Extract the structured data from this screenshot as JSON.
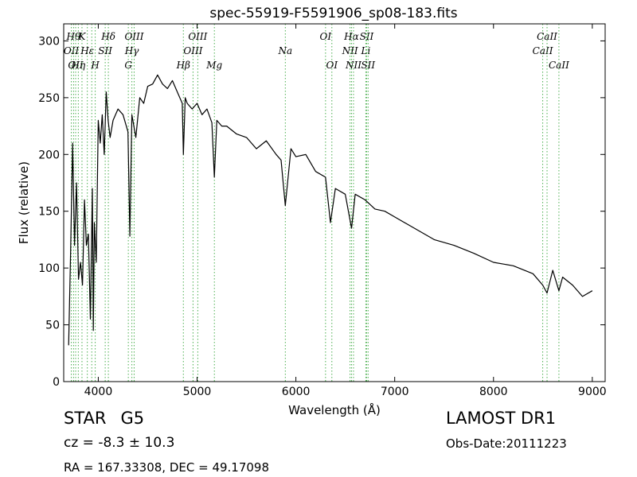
{
  "chart_data": {
    "type": "line",
    "title": "spec-55919-F5591906_sp08-183.fits",
    "xlabel": "Wavelength (Å)",
    "ylabel": "Flux (relative)",
    "xlim": [
      3650,
      9130
    ],
    "ylim": [
      0,
      315
    ],
    "xticks": [
      4000,
      5000,
      6000,
      7000,
      8000,
      9000
    ],
    "yticks": [
      0,
      50,
      100,
      150,
      200,
      250,
      300
    ],
    "grid": false,
    "line_color": "#000000",
    "marker_color": "#4caf50",
    "series": [
      {
        "x": [
          3700,
          3720,
          3740,
          3760,
          3780,
          3800,
          3820,
          3840,
          3860,
          3880,
          3900,
          3920,
          3940,
          3950,
          3960,
          3980,
          4000,
          4020,
          4040,
          4060,
          4080,
          4100,
          4120,
          4150,
          4200,
          4250,
          4300,
          4320,
          4340,
          4380,
          4420,
          4460,
          4500,
          4550,
          4600,
          4650,
          4700,
          4750,
          4800,
          4850,
          4861,
          4880,
          4900,
          4950,
          5000,
          5050,
          5100,
          5150,
          5175,
          5200,
          5250,
          5300,
          5400,
          5500,
          5600,
          5700,
          5800,
          5850,
          5893,
          5950,
          6000,
          6100,
          6200,
          6300,
          6350,
          6400,
          6500,
          6563,
          6600,
          6700,
          6800,
          6900,
          7000,
          7200,
          7400,
          7600,
          7800,
          8000,
          8200,
          8400,
          8498,
          8542,
          8600,
          8662,
          8700,
          8800,
          8900,
          9000
        ],
        "values": [
          32,
          115,
          210,
          120,
          175,
          90,
          105,
          85,
          160,
          120,
          130,
          55,
          170,
          45,
          140,
          105,
          230,
          210,
          235,
          200,
          255,
          230,
          215,
          230,
          240,
          235,
          220,
          128,
          235,
          215,
          250,
          245,
          260,
          262,
          270,
          262,
          258,
          265,
          255,
          245,
          200,
          250,
          245,
          240,
          245,
          235,
          240,
          228,
          180,
          230,
          225,
          225,
          218,
          215,
          205,
          212,
          200,
          195,
          155,
          205,
          198,
          200,
          185,
          180,
          140,
          170,
          165,
          135,
          165,
          160,
          152,
          150,
          145,
          135,
          125,
          120,
          113,
          105,
          102,
          95,
          85,
          78,
          98,
          80,
          92,
          85,
          75,
          80
        ]
      }
    ],
    "lines": [
      {
        "w": 3727,
        "labels": [
          {
            "text": "OII",
            "row": 2
          }
        ]
      },
      {
        "w": 3750,
        "labels": [
          {
            "text": "Hθ",
            "row": 1
          }
        ]
      },
      {
        "w": 3771,
        "labels": [
          {
            "text": "OII",
            "row": 3
          }
        ]
      },
      {
        "w": 3798,
        "labels": [
          {
            "text": "Hη",
            "row": 3
          }
        ]
      },
      {
        "w": 3835,
        "labels": [
          {
            "text": "K",
            "row": 1
          }
        ]
      },
      {
        "w": 3889,
        "labels": [
          {
            "text": "Hε",
            "row": 2
          }
        ]
      },
      {
        "w": 3934,
        "labels": []
      },
      {
        "w": 3969,
        "labels": [
          {
            "text": "H",
            "row": 3
          }
        ]
      },
      {
        "w": 4070,
        "labels": [
          {
            "text": "SII",
            "row": 2
          }
        ]
      },
      {
        "w": 4102,
        "labels": [
          {
            "text": "Hδ",
            "row": 1
          }
        ]
      },
      {
        "w": 4304,
        "labels": [
          {
            "text": "G",
            "row": 3
          }
        ]
      },
      {
        "w": 4340,
        "labels": [
          {
            "text": "Hγ",
            "row": 2
          }
        ]
      },
      {
        "w": 4363,
        "labels": [
          {
            "text": "OIII",
            "row": 1
          }
        ]
      },
      {
        "w": 4861,
        "labels": [
          {
            "text": "Hβ",
            "row": 3
          }
        ]
      },
      {
        "w": 4959,
        "labels": [
          {
            "text": "OIII",
            "row": 2
          }
        ]
      },
      {
        "w": 5007,
        "labels": [
          {
            "text": "OIII",
            "row": 1
          }
        ]
      },
      {
        "w": 5175,
        "labels": [
          {
            "text": "Mg",
            "row": 3
          }
        ]
      },
      {
        "w": 5893,
        "labels": [
          {
            "text": "Na",
            "row": 2
          }
        ]
      },
      {
        "w": 6300,
        "labels": [
          {
            "text": "OI",
            "row": 1
          }
        ]
      },
      {
        "w": 6364,
        "labels": [
          {
            "text": "OI",
            "row": 3
          }
        ]
      },
      {
        "w": 6548,
        "labels": [
          {
            "text": "NII",
            "row": 2
          }
        ]
      },
      {
        "w": 6563,
        "labels": [
          {
            "text": "Hα",
            "row": 1
          }
        ]
      },
      {
        "w": 6583,
        "labels": [
          {
            "text": "NII",
            "row": 3
          }
        ]
      },
      {
        "w": 6708,
        "labels": [
          {
            "text": "Li",
            "row": 2
          }
        ]
      },
      {
        "w": 6716,
        "labels": [
          {
            "text": "SII",
            "row": 1
          }
        ]
      },
      {
        "w": 6731,
        "labels": [
          {
            "text": "SII",
            "row": 3
          }
        ]
      },
      {
        "w": 8498,
        "labels": [
          {
            "text": "CaII",
            "row": 2
          }
        ]
      },
      {
        "w": 8542,
        "labels": [
          {
            "text": "CaII",
            "row": 1
          }
        ]
      },
      {
        "w": 8662,
        "labels": [
          {
            "text": "CaII",
            "row": 3
          }
        ]
      }
    ]
  },
  "info": {
    "class_label": "STAR",
    "subclass": "G5",
    "cz": "cz = -8.3 ± 10.3",
    "radec": "RA = 167.33308, DEC = 49.17098",
    "survey": "LAMOST DR1",
    "obs_date": "Obs-Date:20111223"
  }
}
